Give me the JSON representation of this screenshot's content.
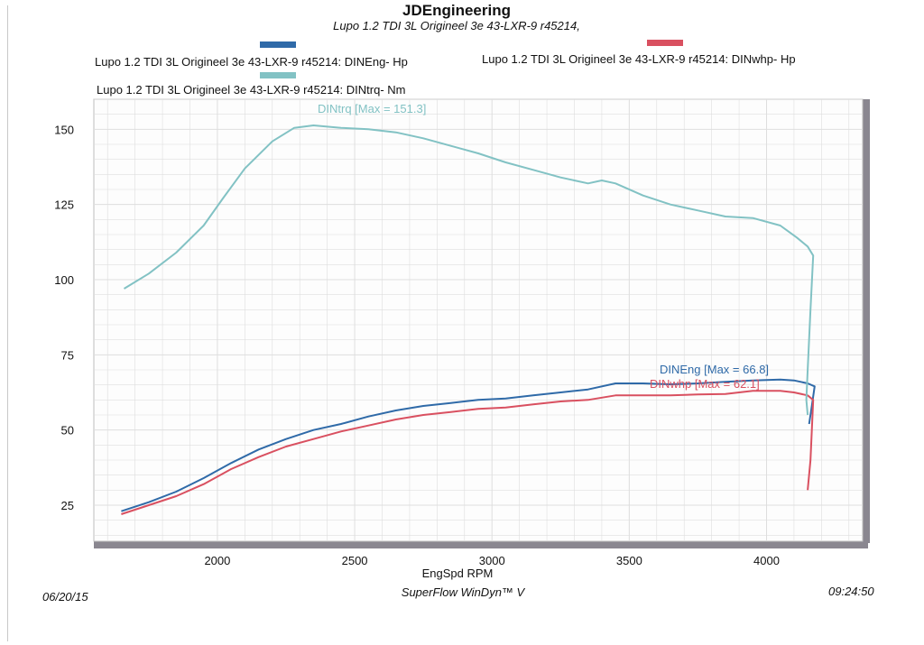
{
  "colors": {
    "eng": "#2f6aa8",
    "whp": "#d95060",
    "trq": "#82c2c4",
    "grid": "#dedede",
    "frame_shadow": "#8a8790",
    "plot_bg": "#fdfdfd"
  },
  "chart_data": {
    "type": "line",
    "title": "JDEngineering",
    "subtitle": "Lupo 1.2 TDI 3L Origineel 3e 43-LXR-9 r45214,",
    "xlabel": "EngSpd  RPM",
    "ylabel": "",
    "xlim": [
      1550,
      4350
    ],
    "ylim": [
      13,
      160
    ],
    "grid": true,
    "legend_position": "top",
    "x_ticks": [
      2000,
      2500,
      3000,
      3500,
      4000
    ],
    "y_ticks": [
      25,
      50,
      75,
      100,
      125,
      150
    ],
    "series": [
      {
        "name": "Lupo 1.2 TDI 3L Origineel 3e 43-LXR-9 r45214: DINEng- Hp",
        "key": "eng",
        "annotation": "DINEng [Max = 66.8]",
        "points": [
          [
            1650,
            23
          ],
          [
            1750,
            26
          ],
          [
            1850,
            29.5
          ],
          [
            1950,
            34
          ],
          [
            2050,
            39
          ],
          [
            2150,
            43.5
          ],
          [
            2250,
            47
          ],
          [
            2350,
            50
          ],
          [
            2450,
            52
          ],
          [
            2550,
            54.5
          ],
          [
            2650,
            56.5
          ],
          [
            2750,
            58
          ],
          [
            2850,
            59
          ],
          [
            2950,
            60
          ],
          [
            3050,
            60.5
          ],
          [
            3150,
            61.5
          ],
          [
            3250,
            62.5
          ],
          [
            3350,
            63.5
          ],
          [
            3450,
            65.5
          ],
          [
            3550,
            65.5
          ],
          [
            3650,
            65.2
          ],
          [
            3750,
            65.5
          ],
          [
            3850,
            66
          ],
          [
            3950,
            66.5
          ],
          [
            4050,
            66.8
          ],
          [
            4100,
            66.5
          ],
          [
            4150,
            65.5
          ],
          [
            4175,
            64.5
          ],
          [
            4165,
            58
          ],
          [
            4155,
            52
          ]
        ]
      },
      {
        "name": "Lupo 1.2 TDI 3L Origineel 3e 43-LXR-9 r45214: DINwhp-  Hp",
        "key": "whp",
        "annotation": "DINwhp [Max = 62.1]",
        "points": [
          [
            1650,
            22
          ],
          [
            1750,
            25
          ],
          [
            1850,
            28
          ],
          [
            1950,
            32
          ],
          [
            2050,
            37
          ],
          [
            2150,
            41
          ],
          [
            2250,
            44.5
          ],
          [
            2350,
            47
          ],
          [
            2450,
            49.5
          ],
          [
            2550,
            51.5
          ],
          [
            2650,
            53.5
          ],
          [
            2750,
            55
          ],
          [
            2850,
            56
          ],
          [
            2950,
            57
          ],
          [
            3050,
            57.5
          ],
          [
            3150,
            58.5
          ],
          [
            3250,
            59.5
          ],
          [
            3350,
            60
          ],
          [
            3450,
            61.5
          ],
          [
            3550,
            61.5
          ],
          [
            3650,
            61.5
          ],
          [
            3750,
            61.8
          ],
          [
            3850,
            62
          ],
          [
            3950,
            63
          ],
          [
            4050,
            63
          ],
          [
            4100,
            62.5
          ],
          [
            4150,
            61.5
          ],
          [
            4170,
            60
          ],
          [
            4160,
            40
          ],
          [
            4150,
            30
          ]
        ]
      },
      {
        "name": "Lupo 1.2 TDI 3L Origineel 3e 43-LXR-9 r45214: DINtrq- Nm",
        "key": "trq",
        "annotation": "DINtrq [Max = 151.3]",
        "points": [
          [
            1660,
            97
          ],
          [
            1750,
            102
          ],
          [
            1850,
            109
          ],
          [
            1950,
            118
          ],
          [
            2020,
            127
          ],
          [
            2100,
            137
          ],
          [
            2200,
            146
          ],
          [
            2280,
            150.5
          ],
          [
            2350,
            151.3
          ],
          [
            2450,
            150.5
          ],
          [
            2550,
            150
          ],
          [
            2650,
            149
          ],
          [
            2750,
            147
          ],
          [
            2850,
            144.5
          ],
          [
            2950,
            142
          ],
          [
            3050,
            139
          ],
          [
            3150,
            136.5
          ],
          [
            3250,
            134
          ],
          [
            3350,
            132
          ],
          [
            3400,
            133
          ],
          [
            3450,
            132
          ],
          [
            3550,
            128
          ],
          [
            3650,
            125
          ],
          [
            3750,
            123
          ],
          [
            3850,
            121
          ],
          [
            3950,
            120.5
          ],
          [
            4050,
            118
          ],
          [
            4110,
            114
          ],
          [
            4150,
            111
          ],
          [
            4170,
            108
          ],
          [
            4160,
            90
          ],
          [
            4150,
            70
          ],
          [
            4145,
            60
          ],
          [
            4150,
            55
          ]
        ]
      }
    ]
  },
  "footer": {
    "date": "06/20/15",
    "software": "SuperFlow WinDyn™ V",
    "time": "09:24:50"
  }
}
